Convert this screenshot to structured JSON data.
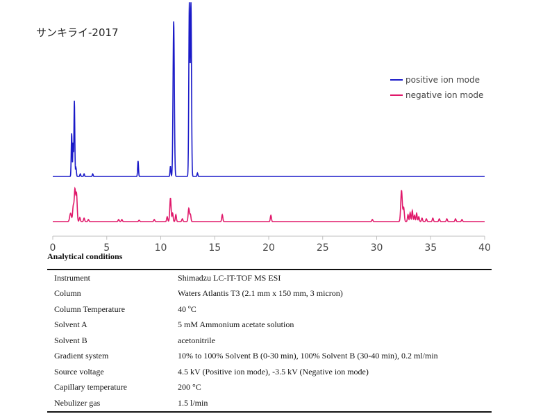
{
  "chart_data": {
    "type": "line",
    "title": "サンキライ-2017",
    "xlim": [
      0,
      40
    ],
    "x_ticks": [
      0,
      5,
      10,
      15,
      20,
      25,
      30,
      35,
      40
    ],
    "y_axis_visible": false,
    "series": [
      {
        "name": "positive ion mode",
        "color": "#1a1ac8",
        "baseline": 0,
        "peaks": [
          {
            "x": 1.75,
            "height": 0.25,
            "width": 0.04
          },
          {
            "x": 1.88,
            "height": 0.19,
            "width": 0.03
          },
          {
            "x": 2.0,
            "height": 0.44,
            "width": 0.04
          },
          {
            "x": 2.15,
            "height": 0.05,
            "width": 0.04
          },
          {
            "x": 2.55,
            "height": 0.015,
            "width": 0.04
          },
          {
            "x": 2.9,
            "height": 0.015,
            "width": 0.04
          },
          {
            "x": 3.7,
            "height": 0.015,
            "width": 0.04
          },
          {
            "x": 7.9,
            "height": 0.09,
            "width": 0.04
          },
          {
            "x": 10.9,
            "height": 0.06,
            "width": 0.04
          },
          {
            "x": 11.2,
            "height": 0.9,
            "width": 0.06
          },
          {
            "x": 12.65,
            "height": 1.0,
            "width": 0.05
          },
          {
            "x": 12.8,
            "height": 1.0,
            "width": 0.05
          },
          {
            "x": 13.4,
            "height": 0.02,
            "width": 0.04
          }
        ]
      },
      {
        "name": "negative ion mode",
        "color": "#e0186a",
        "baseline": 0,
        "peaks": [
          {
            "x": 1.65,
            "height": 0.12,
            "width": 0.08
          },
          {
            "x": 1.9,
            "height": 0.22,
            "width": 0.06
          },
          {
            "x": 2.05,
            "height": 0.45,
            "width": 0.06
          },
          {
            "x": 2.2,
            "height": 0.4,
            "width": 0.06
          },
          {
            "x": 2.5,
            "height": 0.06,
            "width": 0.05
          },
          {
            "x": 2.9,
            "height": 0.05,
            "width": 0.05
          },
          {
            "x": 3.3,
            "height": 0.03,
            "width": 0.05
          },
          {
            "x": 6.1,
            "height": 0.03,
            "width": 0.05
          },
          {
            "x": 6.4,
            "height": 0.03,
            "width": 0.05
          },
          {
            "x": 8.0,
            "height": 0.02,
            "width": 0.05
          },
          {
            "x": 9.4,
            "height": 0.03,
            "width": 0.05
          },
          {
            "x": 10.6,
            "height": 0.07,
            "width": 0.05
          },
          {
            "x": 10.9,
            "height": 0.34,
            "width": 0.06
          },
          {
            "x": 11.1,
            "height": 0.12,
            "width": 0.05
          },
          {
            "x": 11.4,
            "height": 0.1,
            "width": 0.05
          },
          {
            "x": 12.0,
            "height": 0.04,
            "width": 0.05
          },
          {
            "x": 12.6,
            "height": 0.19,
            "width": 0.06
          },
          {
            "x": 12.75,
            "height": 0.1,
            "width": 0.05
          },
          {
            "x": 15.7,
            "height": 0.1,
            "width": 0.05
          },
          {
            "x": 20.2,
            "height": 0.09,
            "width": 0.05
          },
          {
            "x": 29.6,
            "height": 0.03,
            "width": 0.05
          },
          {
            "x": 32.3,
            "height": 0.45,
            "width": 0.07
          },
          {
            "x": 32.5,
            "height": 0.2,
            "width": 0.06
          },
          {
            "x": 32.9,
            "height": 0.1,
            "width": 0.05
          },
          {
            "x": 33.1,
            "height": 0.13,
            "width": 0.05
          },
          {
            "x": 33.3,
            "height": 0.16,
            "width": 0.05
          },
          {
            "x": 33.5,
            "height": 0.09,
            "width": 0.05
          },
          {
            "x": 33.7,
            "height": 0.12,
            "width": 0.05
          },
          {
            "x": 33.9,
            "height": 0.07,
            "width": 0.05
          },
          {
            "x": 34.2,
            "height": 0.05,
            "width": 0.05
          },
          {
            "x": 34.6,
            "height": 0.04,
            "width": 0.05
          },
          {
            "x": 35.2,
            "height": 0.05,
            "width": 0.05
          },
          {
            "x": 35.8,
            "height": 0.04,
            "width": 0.05
          },
          {
            "x": 36.5,
            "height": 0.04,
            "width": 0.05
          },
          {
            "x": 37.3,
            "height": 0.04,
            "width": 0.05
          },
          {
            "x": 37.9,
            "height": 0.03,
            "width": 0.05
          }
        ]
      }
    ],
    "legend_position": "top-right"
  },
  "conditions": {
    "heading": "Analytical conditions",
    "rows": [
      {
        "param": "Instrument",
        "value": "Shimadzu LC-IT-TOF MS ESI"
      },
      {
        "param": "Column",
        "value": "Waters Atlantis T3 (2.1 mm x 150 mm, 3 micron)"
      },
      {
        "param": "Column Temperature",
        "value": "40 ºC"
      },
      {
        "param": "Solvent A",
        "value": "5 mM Ammonium acetate solution"
      },
      {
        "param": "Solvent B",
        "value": "acetonitrile"
      },
      {
        "param": "Gradient system",
        "value": "10% to 100% Solvent B (0-30 min), 100% Solvent B (30-40 min), 0.2 ml/min"
      },
      {
        "param": "Source voltage",
        "value": "4.5 kV (Positive ion mode), -3.5 kV (Negative ion mode)"
      },
      {
        "param": "Capillary temperature",
        "value": "200 °C"
      },
      {
        "param": "Nebulizer gas",
        "value": "1.5 l/min"
      }
    ]
  }
}
